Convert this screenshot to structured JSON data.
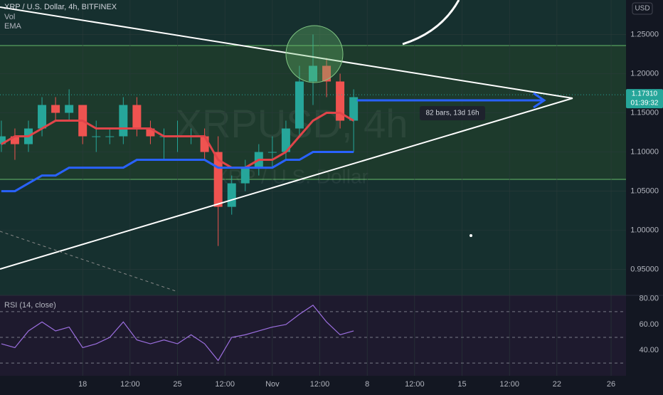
{
  "chart_data": {
    "type": "candlestick",
    "title": "XRP / U.S. Dollar, 4h, BITFINEX",
    "indicators": [
      "Vol",
      "EMA"
    ],
    "currency": "USD",
    "watermark": [
      "XRPUSD, 4h",
      "XRP / U.S. Dollar"
    ],
    "annotation": "82 bars, 13d 16h",
    "x": [
      -6,
      -5,
      -4,
      -3,
      -2,
      -1,
      0,
      1,
      2,
      3,
      4,
      5,
      6,
      7,
      8,
      9,
      10,
      11,
      12,
      13,
      14,
      15,
      16,
      17,
      18,
      19,
      20
    ],
    "open": [
      1.11,
      1.12,
      1.11,
      1.13,
      1.16,
      1.15,
      1.16,
      1.12,
      1.12,
      1.12,
      1.16,
      1.13,
      1.12,
      1.12,
      1.12,
      1.12,
      1.1,
      1.03,
      1.06,
      1.08,
      1.1,
      1.1,
      1.13,
      1.19,
      1.21,
      1.19,
      1.14
    ],
    "high": [
      1.14,
      1.13,
      1.14,
      1.17,
      1.17,
      1.18,
      1.16,
      1.14,
      1.13,
      1.17,
      1.17,
      1.14,
      1.13,
      1.14,
      1.13,
      1.13,
      1.12,
      1.07,
      1.09,
      1.11,
      1.12,
      1.14,
      1.21,
      1.25,
      1.22,
      1.2,
      1.18
    ],
    "low": [
      1.1,
      1.09,
      1.1,
      1.12,
      1.14,
      1.14,
      1.11,
      1.1,
      1.11,
      1.11,
      1.12,
      1.11,
      1.09,
      1.1,
      1.11,
      1.09,
      0.98,
      1.02,
      1.05,
      1.07,
      1.08,
      1.09,
      1.12,
      1.16,
      1.17,
      1.13,
      1.1
    ],
    "close": [
      1.12,
      1.11,
      1.13,
      1.16,
      1.15,
      1.16,
      1.12,
      1.12,
      1.12,
      1.16,
      1.13,
      1.12,
      1.12,
      1.12,
      1.12,
      1.1,
      1.03,
      1.06,
      1.08,
      1.1,
      1.1,
      1.13,
      1.19,
      1.21,
      1.19,
      1.14,
      1.17
    ],
    "up_color": "#26a69a",
    "down_color": "#ef5350",
    "series": [
      {
        "color": "#e0454a",
        "values": [
          1.11,
          1.12,
          1.12,
          1.13,
          1.14,
          1.14,
          1.14,
          1.13,
          1.13,
          1.13,
          1.13,
          1.13,
          1.12,
          1.12,
          1.12,
          1.12,
          1.09,
          1.08,
          1.08,
          1.09,
          1.09,
          1.1,
          1.12,
          1.14,
          1.15,
          1.15,
          1.14
        ]
      },
      {
        "color": "#2962ff",
        "values": [
          1.05,
          1.05,
          1.06,
          1.07,
          1.07,
          1.08,
          1.08,
          1.08,
          1.08,
          1.08,
          1.09,
          1.09,
          1.09,
          1.09,
          1.09,
          1.09,
          1.08,
          1.08,
          1.08,
          1.08,
          1.08,
          1.09,
          1.09,
          1.1,
          1.1,
          1.1,
          1.1
        ]
      }
    ],
    "xlim": [
      -6.1,
      40.1
    ],
    "ylim": [
      0.917,
      1.294
    ],
    "yticks": [
      {
        "value": 0.95,
        "label": "0.95000"
      },
      {
        "value": 1.0,
        "label": "1.00000"
      },
      {
        "value": 1.05,
        "label": "1.05000"
      },
      {
        "value": 1.1,
        "label": "1.10000"
      },
      {
        "value": 1.15,
        "label": "1.15000"
      },
      {
        "value": 1.2,
        "label": "1.20000"
      },
      {
        "value": 1.25,
        "label": "1.25000"
      }
    ],
    "xticks": [
      {
        "value": 0,
        "label": "18"
      },
      {
        "value": 3.5,
        "label": "12:00"
      },
      {
        "value": 7,
        "label": "25"
      },
      {
        "value": 10.5,
        "label": "12:00"
      },
      {
        "value": 14,
        "label": "Nov"
      },
      {
        "value": 17.5,
        "label": "12:00"
      },
      {
        "value": 21,
        "label": "8"
      },
      {
        "value": 24.5,
        "label": "12:00"
      },
      {
        "value": 28,
        "label": "15"
      },
      {
        "value": 31.5,
        "label": "12:00"
      },
      {
        "value": 35,
        "label": "22"
      },
      {
        "value": 39,
        "label": "26"
      }
    ],
    "last_price": {
      "value": 1.1731,
      "label": "1.17310"
    },
    "countdown": "01:39:32",
    "rsi": {
      "title": "RSI (14, close)",
      "color": "#9c6fe0",
      "values": [
        45,
        42,
        55,
        62,
        55,
        58,
        42,
        45,
        50,
        62,
        48,
        45,
        48,
        45,
        52,
        45,
        32,
        50,
        52,
        55,
        58,
        60,
        68,
        75,
        62,
        52,
        55
      ],
      "ylim": [
        19,
        81
      ],
      "yticks": [
        {
          "value": 40,
          "label": "40.00"
        },
        {
          "value": 60,
          "label": "60.00"
        },
        {
          "value": 80,
          "label": "80.00"
        }
      ],
      "bands": [
        30,
        50,
        70
      ]
    }
  }
}
